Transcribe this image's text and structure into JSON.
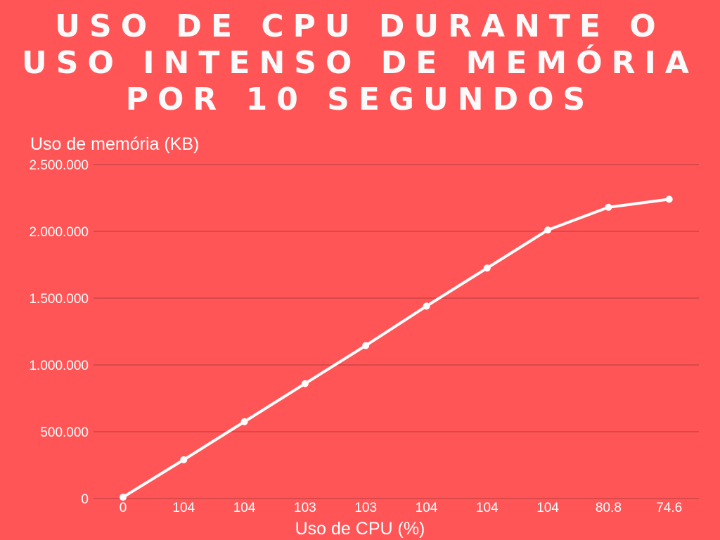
{
  "chart_data": {
    "type": "line",
    "title": "USO DE CPU DURANTE O USO INTENSO DE MEMÓRIA POR 10 SEGUNDOS",
    "xlabel": "Uso de CPU (%)",
    "ylabel": "Uso de memória (KB)",
    "categories": [
      "0",
      "104",
      "104",
      "103",
      "103",
      "104",
      "104",
      "104",
      "80.8",
      "74.6"
    ],
    "series": [
      {
        "values": [
          10000,
          290000,
          575000,
          860000,
          1145000,
          1440000,
          1725000,
          2010000,
          2180000,
          2240000
        ]
      }
    ],
    "ylim": [
      0,
      2500000
    ],
    "yticks": [
      0,
      500000,
      1000000,
      1500000,
      2000000,
      2500000
    ],
    "ytick_labels": [
      "0",
      "500.000",
      "1.000.000",
      "1.500.000",
      "2.000.000",
      "2.500.000"
    ],
    "grid": true,
    "legend": "none",
    "colors": {
      "background": "#ff5556",
      "line": "#ffffff",
      "text": "#ffffff"
    }
  }
}
